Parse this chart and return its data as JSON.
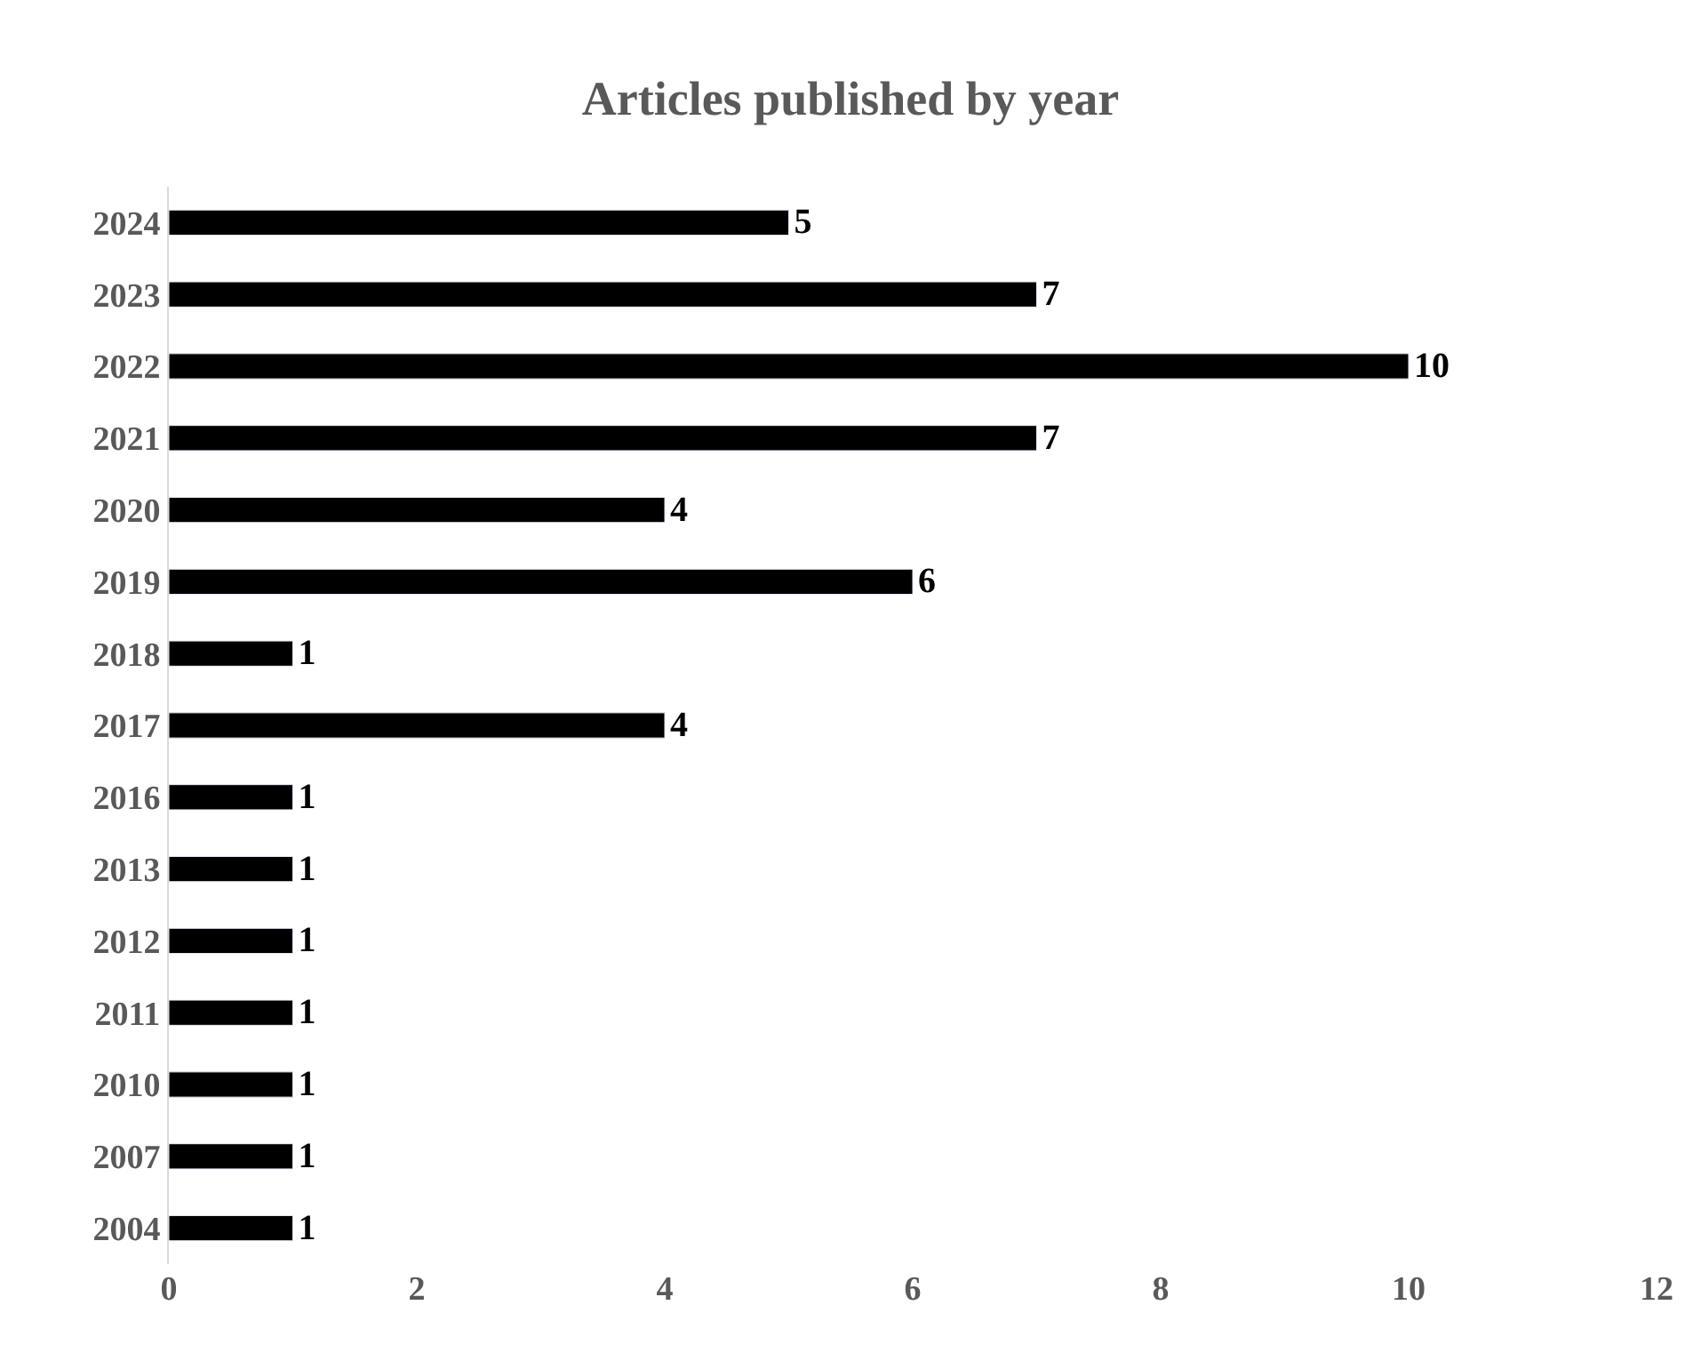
{
  "chart_data": {
    "type": "bar",
    "orientation": "horizontal",
    "title": "Articles published by year",
    "categories": [
      "2024",
      "2023",
      "2022",
      "2021",
      "2020",
      "2019",
      "2018",
      "2017",
      "2016",
      "2013",
      "2012",
      "2011",
      "2010",
      "2007",
      "2004"
    ],
    "values": [
      5,
      7,
      10,
      7,
      4,
      6,
      1,
      4,
      1,
      1,
      1,
      1,
      1,
      1,
      1
    ],
    "color": "#000000",
    "xlim": [
      0,
      12
    ],
    "xticks": [
      0,
      2,
      4,
      6,
      8,
      10,
      12
    ],
    "data_labels": true,
    "legend": false
  }
}
